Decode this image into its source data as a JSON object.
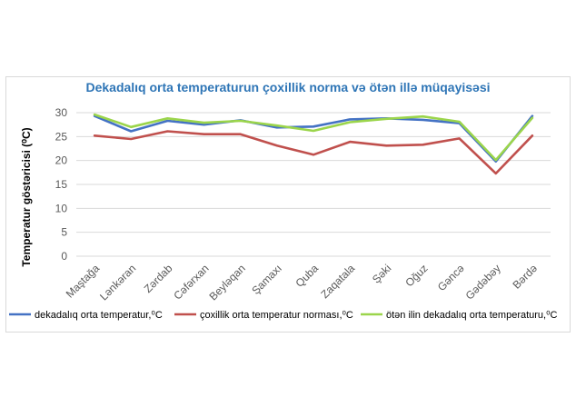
{
  "chart_data": {
    "type": "line",
    "title": "Dekadalıq orta temperaturun çoxillik norma və ötən illə müqayisəsi",
    "xlabel": "",
    "ylabel": "Temperatur göstəricisi (⁰C)",
    "ylim": [
      0,
      30
    ],
    "yticks": [
      0,
      5,
      10,
      15,
      20,
      25,
      30
    ],
    "grid": true,
    "legend_position": "bottom",
    "categories": [
      "Maştağa",
      "Lənkəran",
      "Zərdab",
      "Cəfərxan",
      "Beyləqan",
      "Şamaxı",
      "Quba",
      "Zaqatala",
      "Şəki",
      "Oğuz",
      "Gəncə",
      "Gədəbəy",
      "Bərdə"
    ],
    "series": [
      {
        "name": "dekadalıq orta temperatur,⁰C",
        "color": "#4472c4",
        "values": [
          29.3,
          26.1,
          28.3,
          27.5,
          28.4,
          26.9,
          27.1,
          28.6,
          28.8,
          28.5,
          27.8,
          19.8,
          29.3
        ]
      },
      {
        "name": "çoxillik orta temperatur norması,⁰C",
        "color": "#c0504d",
        "values": [
          25.2,
          24.5,
          26.1,
          25.5,
          25.5,
          23.1,
          21.2,
          23.9,
          23.1,
          23.3,
          24.6,
          17.3,
          25.2
        ]
      },
      {
        "name": "ötən ilin dekadalıq orta temperaturu,⁰C",
        "color": "#9bd54b",
        "values": [
          29.6,
          27.0,
          28.8,
          27.9,
          28.3,
          27.3,
          26.2,
          28.0,
          28.7,
          29.2,
          28.1,
          20.1,
          28.9
        ]
      }
    ]
  }
}
